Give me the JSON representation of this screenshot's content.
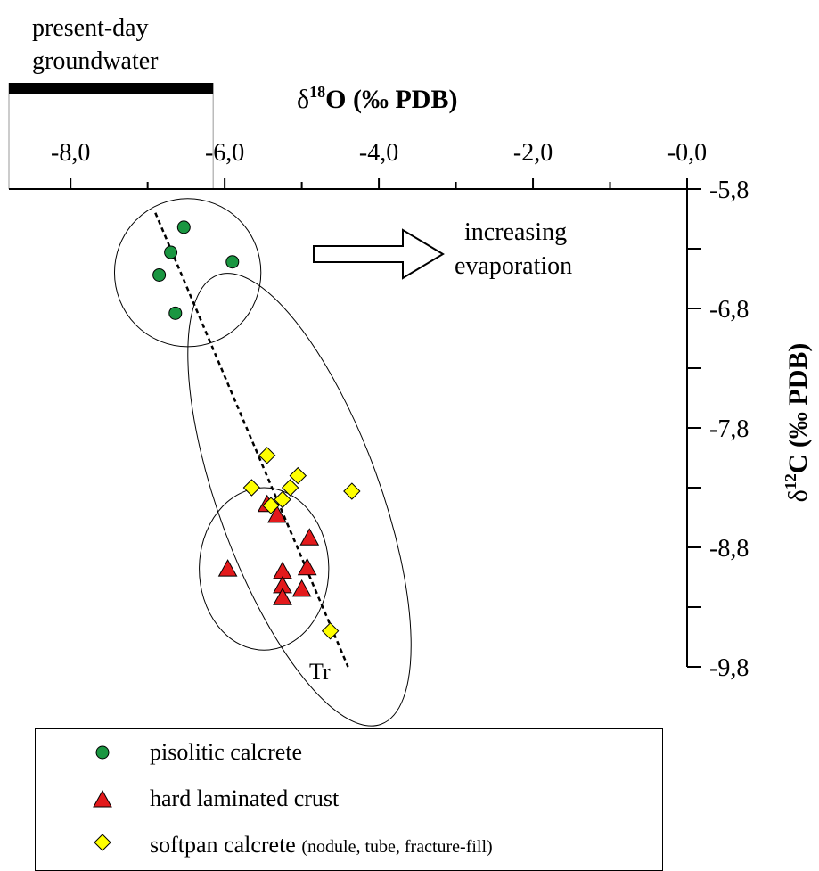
{
  "chart_data": {
    "type": "scatter",
    "xlabel_prefix": "δ",
    "xlabel_sup": "18",
    "xlabel_rest": "O (‰ PDB)",
    "ylabel_prefix": "δ",
    "ylabel_sup": "12",
    "ylabel_rest": "C (‰ PDB)",
    "x_ticks": [
      "-8,0",
      "-6,0",
      "-4,0",
      "-2,0",
      "-0,0"
    ],
    "y_ticks": [
      "-5,8",
      "-6,8",
      "-7,8",
      "-8,8",
      "-9,8"
    ],
    "xlim": [
      -8.8,
      0.0
    ],
    "ylim": [
      -5.8,
      -9.8
    ],
    "series": [
      {
        "name": "pisolitic calcrete",
        "marker": "circle",
        "color": "#1a9641",
        "x": [
          -6.53,
          -6.7,
          -6.85,
          -5.9,
          -6.64
        ],
        "y": [
          -6.12,
          -6.33,
          -6.52,
          -6.41,
          -6.84
        ]
      },
      {
        "name": "hard laminated crust",
        "marker": "triangle",
        "color": "#e31a1c",
        "x": [
          -5.45,
          -5.32,
          -4.9,
          -5.96,
          -5.25,
          -4.93,
          -5.25,
          -5.0,
          -5.25
        ],
        "y": [
          -8.44,
          -8.53,
          -8.72,
          -8.98,
          -9.0,
          -8.97,
          -9.12,
          -9.15,
          -9.22
        ]
      },
      {
        "name": "softpan calcrete",
        "name_suffix": "(nodule, tube, fracture-fill)",
        "marker": "diamond",
        "color": "#ffff00",
        "x": [
          -5.45,
          -5.65,
          -5.05,
          -5.15,
          -5.25,
          -5.4,
          -4.35,
          -4.63
        ],
        "y": [
          -8.03,
          -8.3,
          -8.2,
          -8.3,
          -8.4,
          -8.45,
          -8.33,
          -9.5
        ]
      }
    ],
    "groundwater_label_line1": "present-day",
    "groundwater_label_line2": "groundwater",
    "groundwater_range": [
      -8.8,
      -6.15
    ],
    "trend_label": "Tr",
    "trend_line": {
      "x": [
        -6.9,
        -4.4
      ],
      "y": [
        -6.0,
        -9.8
      ]
    },
    "arrow_label_line1": "increasing",
    "arrow_label_line2": "evaporation",
    "ellipses": [
      {
        "group": "pisolitic calcrete",
        "cx": -6.48,
        "cy": -6.5,
        "rx": 0.95,
        "ry": 0.62,
        "rotate": 0
      },
      {
        "group": "softpan calcrete",
        "cx": -5.03,
        "cy": -8.4,
        "rx": 1.05,
        "ry": 2.0,
        "rotate": -20
      },
      {
        "group": "hard laminated crust",
        "cx": -5.49,
        "cy": -8.98,
        "rx": 0.84,
        "ry": 0.68,
        "rotate": 0
      }
    ]
  }
}
